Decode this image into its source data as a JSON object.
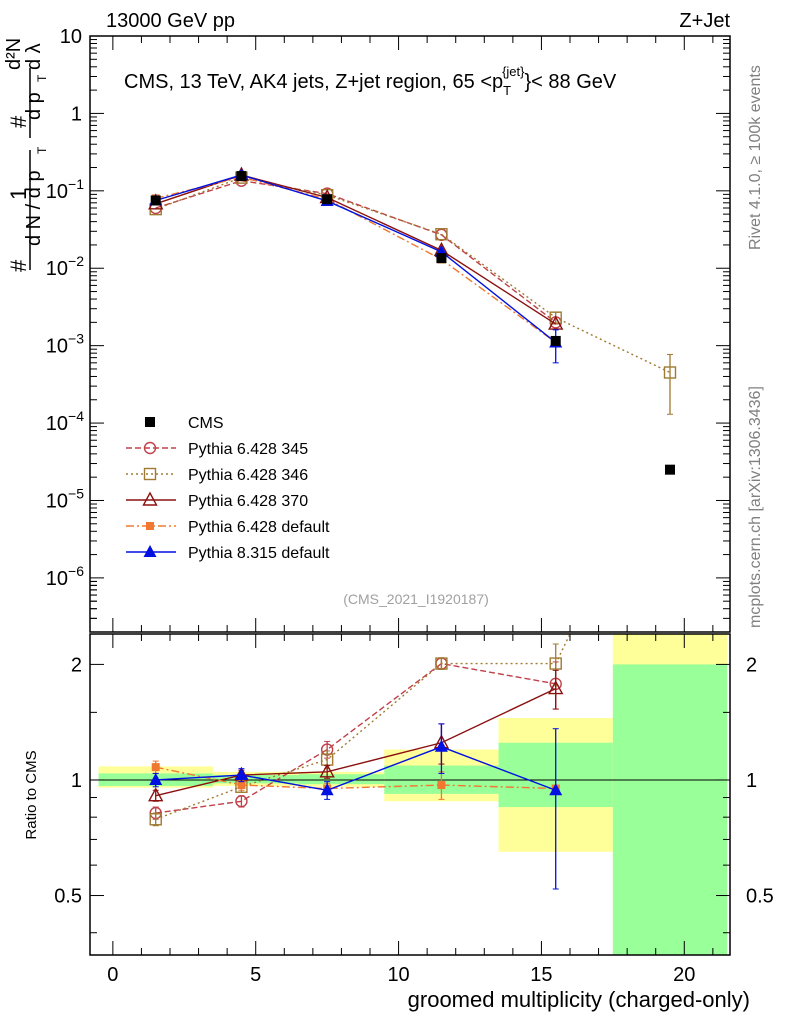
{
  "header": {
    "left": "13000 GeV pp",
    "right": "Z+Jet"
  },
  "side": {
    "rivet": "Rivet 4.1.0, ≥ 100k events",
    "mcplots": "mcplots.cern.ch [arXiv:1306.3436]"
  },
  "colors": {
    "cms": "#000000",
    "p345": "#c0404a",
    "p346": "#a07a30",
    "p370": "#8b1010",
    "p6def": "#f07830",
    "p8def": "#0010e0",
    "band_green": "#99ff99",
    "band_yellow": "#ffff99"
  },
  "chart_data": [
    {
      "type": "line",
      "scale": "log",
      "title": "CMS, 13 TeV, AK4 jets, Z+jet region, 65 <p_T^{jet}< 88 GeV",
      "title_parts": {
        "a": "CMS, 13 TeV, AK4 jets, Z+jet region, 65 <p",
        "sub": "T",
        "sup": "{jet}",
        "b": "}< 88 GeV"
      },
      "ylabel_parts": {
        "hash": "#",
        "one": "1",
        "dN": "d N / d p",
        "T": "T",
        "d2N": "d²N",
        "dpT": "d p",
        "dl": "d λ"
      },
      "ylim": [
        2e-07,
        10
      ],
      "yticks": [
        {
          "value": 10,
          "mant": "10",
          "exp": ""
        },
        {
          "value": 1,
          "mant": "1",
          "exp": ""
        },
        {
          "value": 0.1,
          "mant": "10",
          "exp": "−1"
        },
        {
          "value": 0.01,
          "mant": "10",
          "exp": "−2"
        },
        {
          "value": 0.001,
          "mant": "10",
          "exp": "−3"
        },
        {
          "value": 0.0001,
          "mant": "10",
          "exp": "−4"
        },
        {
          "value": 1e-05,
          "mant": "10",
          "exp": "−5"
        },
        {
          "value": 1e-06,
          "mant": "10",
          "exp": "−6"
        }
      ],
      "watermark": "(CMS_2021_I1920187)",
      "cms_points": [
        {
          "x": 1.5,
          "y": 0.075
        },
        {
          "x": 4.5,
          "y": 0.155
        },
        {
          "x": 7.5,
          "y": 0.078
        },
        {
          "x": 11.5,
          "y": 0.0135
        },
        {
          "x": 15.5,
          "y": 0.00115
        },
        {
          "x": 19.5,
          "y": 2.5e-05
        }
      ],
      "series": [
        {
          "key": "p345",
          "name": "Pythia 6.428 345",
          "marker": "circle",
          "dash": "6,3",
          "x": [
            1.5,
            4.5,
            7.5,
            11.5,
            15.5
          ],
          "y": [
            0.06,
            0.135,
            0.092,
            0.027,
            0.002
          ]
        },
        {
          "key": "p346",
          "name": "Pythia 6.428 346",
          "marker": "square",
          "dash": "2,3",
          "x": [
            1.5,
            4.5,
            7.5,
            11.5,
            15.5,
            19.5
          ],
          "y": [
            0.058,
            0.148,
            0.088,
            0.0275,
            0.0023,
            0.00045
          ],
          "err": [
            0,
            0,
            0,
            0,
            0.0004,
            0.00032
          ]
        },
        {
          "key": "p370",
          "name": "Pythia 6.428 370",
          "marker": "triangle-open",
          "dash": "",
          "x": [
            1.5,
            4.5,
            7.5,
            11.5,
            15.5
          ],
          "y": [
            0.068,
            0.16,
            0.082,
            0.017,
            0.0019
          ]
        },
        {
          "key": "p6def",
          "name": "Pythia 6.428 default",
          "marker": "square-filled",
          "dash": "8,3,2,3",
          "x": [
            1.5,
            4.5,
            7.5,
            11.5,
            15.5
          ],
          "y": [
            0.08,
            0.15,
            0.078,
            0.013,
            0.0011
          ]
        },
        {
          "key": "p8def",
          "name": "Pythia 8.315 default",
          "marker": "triangle-filled",
          "dash": "",
          "x": [
            1.5,
            4.5,
            7.5,
            11.5,
            15.5
          ],
          "y": [
            0.075,
            0.16,
            0.074,
            0.0163,
            0.0011
          ],
          "err": [
            0,
            0,
            0,
            0,
            0.0005
          ]
        }
      ],
      "legend_cms": "CMS"
    },
    {
      "type": "line",
      "scale": "log",
      "ylabel": "Ratio to CMS",
      "xlabel": "groomed multiplicity (charged-only)",
      "xlim": [
        -0.8,
        21.6
      ],
      "ylim": [
        0.35,
        2.4
      ],
      "xticks": [
        0,
        5,
        10,
        15,
        20
      ],
      "yticks": [
        0.5,
        1,
        2
      ],
      "bands": [
        {
          "x0": -0.5,
          "x1": 3.5,
          "g": [
            0.965,
            1.04
          ],
          "yl": [
            0.955,
            1.085
          ]
        },
        {
          "x0": 3.5,
          "x1": 6.5,
          "g": [
            0.98,
            1.03
          ],
          "yl": [
            0.965,
            1.05
          ]
        },
        {
          "x0": 6.5,
          "x1": 9.5,
          "g": [
            0.975,
            1.035
          ],
          "yl": [
            0.96,
            1.05
          ]
        },
        {
          "x0": 9.5,
          "x1": 13.5,
          "g": [
            0.92,
            1.09
          ],
          "yl": [
            0.88,
            1.2
          ]
        },
        {
          "x0": 13.5,
          "x1": 17.5,
          "g": [
            0.85,
            1.25
          ],
          "yl": [
            0.65,
            1.45
          ]
        },
        {
          "x0": 17.5,
          "x1": 21.5,
          "g": [
            0.35,
            2.0
          ],
          "yl": [
            0.35,
            2.4
          ]
        }
      ],
      "series": [
        {
          "key": "p345",
          "marker": "circle",
          "dash": "6,3",
          "x": [
            1.5,
            4.5,
            7.5,
            11.5,
            15.5
          ],
          "y": [
            0.82,
            0.88,
            1.2,
            2.01,
            1.78
          ],
          "err": [
            0.03,
            0.03,
            0.06,
            0.07,
            0.25
          ]
        },
        {
          "key": "p346",
          "marker": "square",
          "dash": "2,3",
          "x": [
            1.5,
            4.5,
            7.5,
            11.5,
            15.5,
            16.0
          ],
          "y": [
            0.79,
            0.96,
            1.13,
            2.01,
            2.01,
            2.4
          ],
          "err": [
            0.03,
            0.03,
            0.06,
            0.07,
            0.25,
            0
          ]
        },
        {
          "key": "p370",
          "marker": "triangle-open",
          "dash": "",
          "x": [
            1.5,
            4.5,
            7.5,
            11.5,
            15.5
          ],
          "y": [
            0.91,
            1.03,
            1.05,
            1.25,
            1.73
          ],
          "err": [
            0.03,
            0.03,
            0.04,
            0.15,
            0.2
          ]
        },
        {
          "key": "p6def",
          "marker": "square-filled",
          "dash": "8,3,2,3",
          "x": [
            1.5,
            4.5,
            7.5,
            11.5,
            15.5
          ],
          "y": [
            1.08,
            0.97,
            0.95,
            0.97,
            0.95
          ],
          "err": [
            0.04,
            0.03,
            0.03,
            0.08,
            0
          ]
        },
        {
          "key": "p8def",
          "marker": "triangle-filled",
          "dash": "",
          "x": [
            1.5,
            4.5,
            7.5,
            11.5,
            15.5
          ],
          "y": [
            1.0,
            1.03,
            0.94,
            1.22,
            0.94
          ],
          "err": [
            0.04,
            0.04,
            0.05,
            0.18,
            0.42
          ]
        }
      ]
    }
  ]
}
